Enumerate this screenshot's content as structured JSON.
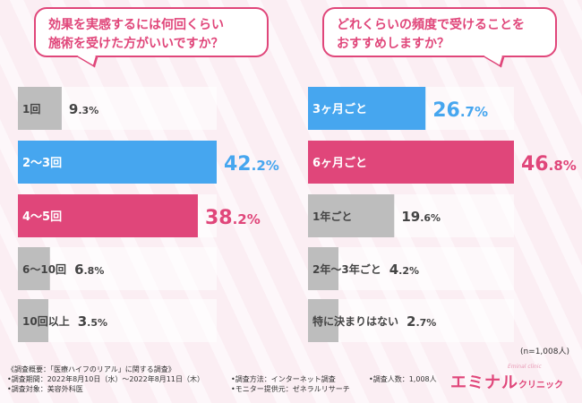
{
  "chart_data": [
    {
      "type": "bar",
      "orientation": "horizontal",
      "title": "効果を実感するには何回くらい施術を受けた方がいいですか？",
      "title_lines": [
        "効果を実感するには何回くらい",
        "施術を受けた方がいいですか？"
      ],
      "categories": [
        "1回",
        "2〜3回",
        "4〜5回",
        "6〜10回",
        "10回以上"
      ],
      "values": [
        9.3,
        42.2,
        38.2,
        6.8,
        3.5
      ],
      "value_labels": [
        [
          "9",
          ".3%"
        ],
        [
          "42",
          ".2%"
        ],
        [
          "38",
          ".2%"
        ],
        [
          "6",
          ".8%"
        ],
        [
          "3",
          ".5%"
        ]
      ],
      "unit": "%",
      "highlight": {
        "1": "#46a6ef",
        "2": "#e0467a"
      },
      "xlim": [
        0,
        42.2
      ]
    },
    {
      "type": "bar",
      "orientation": "horizontal",
      "title": "どれくらいの頻度で受けることをおすすめしますか？",
      "title_lines": [
        "どれくらいの頻度で受けることを",
        "おすすめしますか？"
      ],
      "categories": [
        "3ヶ月ごと",
        "6ヶ月ごと",
        "1年ごと",
        "2年〜3年ごと",
        "特に決まりはない"
      ],
      "values": [
        26.7,
        46.8,
        19.6,
        4.2,
        2.7
      ],
      "value_labels": [
        [
          "26",
          ".7%"
        ],
        [
          "46",
          ".8%"
        ],
        [
          "19",
          ".6%"
        ],
        [
          "4",
          ".2%"
        ],
        [
          "2",
          ".7%"
        ]
      ],
      "unit": "%",
      "highlight": {
        "0": "#46a6ef",
        "1": "#e0467a"
      },
      "xlim": [
        0,
        46.8
      ]
    }
  ],
  "colors": {
    "pink": "#e0467a",
    "blue": "#46a6ef",
    "gray": "#bdbdbd",
    "accent_text": "#333333"
  },
  "sample_note": "(n=1,008人)",
  "footer": {
    "overview": "《調査概要：「医療ハイフのリアル」に関する調査》",
    "period": "•調査期間：2022年8月10日（水）〜2022年8月11日（木）",
    "target": "•調査対象：美容外科医",
    "method": "•調査方法：インターネット調査",
    "provider": "•モニター提供元：ゼネラルリサーチ",
    "people": "•調査人数：1,008人"
  },
  "brand": {
    "main": "エミナル",
    "sub": "クリニック",
    "logo_text": "Eminal clinic"
  }
}
